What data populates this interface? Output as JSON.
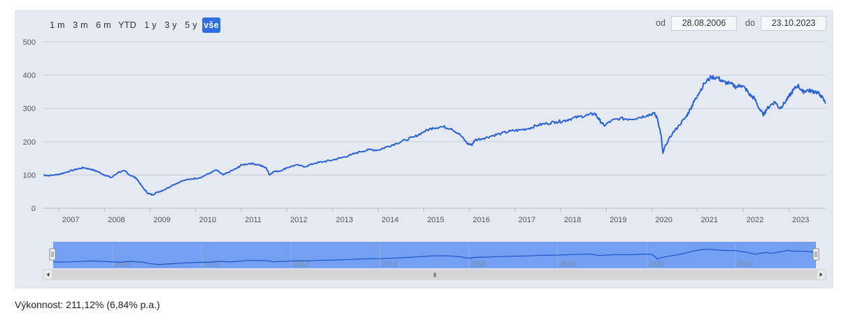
{
  "range_selector": {
    "buttons": [
      "1 m",
      "3 m",
      "6 m",
      "YTD",
      "1 y",
      "3 y",
      "5 y",
      "vše"
    ],
    "active": "vše"
  },
  "date_range": {
    "from_label": "od",
    "from_value": "28.08.2006",
    "to_label": "do",
    "to_value": "23.10.2023"
  },
  "performance_text": "Výkonnost: 211,12% (6,84% p.a.)",
  "colors": {
    "line": "#2a62d6",
    "panel_background": "#e5e9f1",
    "navigator_selection": "#6f9bef",
    "active_button": "#2f6fe0"
  },
  "chart_data": {
    "type": "line",
    "title": "",
    "xlabel": "",
    "ylabel": "",
    "ylim": [
      0,
      500
    ],
    "y_ticks": [
      0,
      100,
      200,
      300,
      400,
      500
    ],
    "xlim": [
      2006.66,
      2023.81
    ],
    "x_ticks": [
      2007,
      2008,
      2009,
      2010,
      2011,
      2012,
      2013,
      2014,
      2015,
      2016,
      2017,
      2018,
      2019,
      2020,
      2021,
      2022,
      2023
    ],
    "grid": true,
    "legend": "none",
    "series": [
      {
        "values_x": [
          2006.66,
          2006.8,
          2007.0,
          2007.2,
          2007.4,
          2007.55,
          2007.7,
          2007.85,
          2008.0,
          2008.15,
          2008.3,
          2008.45,
          2008.55,
          2008.7,
          2008.85,
          2008.95,
          2009.05,
          2009.15,
          2009.3,
          2009.5,
          2009.7,
          2009.9,
          2010.1,
          2010.3,
          2010.45,
          2010.6,
          2010.75,
          2010.9,
          2011.0,
          2011.2,
          2011.4,
          2011.55,
          2011.62,
          2011.7,
          2011.85,
          2012.0,
          2012.2,
          2012.4,
          2012.6,
          2012.8,
          2013.0,
          2013.2,
          2013.4,
          2013.6,
          2013.8,
          2014.0,
          2014.2,
          2014.4,
          2014.6,
          2014.8,
          2015.0,
          2015.2,
          2015.4,
          2015.6,
          2015.8,
          2015.95,
          2016.05,
          2016.12,
          2016.3,
          2016.5,
          2016.7,
          2016.9,
          2017.1,
          2017.3,
          2017.5,
          2017.7,
          2017.9,
          2018.05,
          2018.2,
          2018.4,
          2018.6,
          2018.75,
          2018.85,
          2018.95,
          2019.1,
          2019.3,
          2019.5,
          2019.7,
          2019.9,
          2020.05,
          2020.12,
          2020.2,
          2020.24,
          2020.3,
          2020.45,
          2020.6,
          2020.75,
          2020.85,
          2020.92,
          2021.0,
          2021.15,
          2021.3,
          2021.45,
          2021.55,
          2021.7,
          2021.85,
          2021.95,
          2022.05,
          2022.15,
          2022.25,
          2022.35,
          2022.45,
          2022.5,
          2022.6,
          2022.7,
          2022.8,
          2022.9,
          2023.0,
          2023.1,
          2023.2,
          2023.3,
          2023.4,
          2023.5,
          2023.6,
          2023.7,
          2023.81
        ],
        "values_y": [
          100,
          98,
          102,
          110,
          118,
          122,
          117,
          110,
          100,
          92,
          108,
          112,
          100,
          90,
          60,
          45,
          40,
          48,
          55,
          70,
          82,
          88,
          92,
          105,
          115,
          100,
          110,
          120,
          130,
          135,
          130,
          120,
          100,
          110,
          112,
          122,
          130,
          125,
          135,
          140,
          145,
          152,
          160,
          170,
          176,
          175,
          185,
          195,
          205,
          215,
          230,
          242,
          245,
          240,
          220,
          195,
          190,
          205,
          210,
          218,
          225,
          232,
          235,
          240,
          250,
          255,
          260,
          262,
          268,
          275,
          280,
          285,
          265,
          248,
          262,
          270,
          268,
          272,
          280,
          285,
          270,
          220,
          165,
          190,
          225,
          250,
          275,
          300,
          320,
          340,
          375,
          395,
          392,
          380,
          375,
          365,
          370,
          360,
          340,
          330,
          300,
          280,
          295,
          310,
          320,
          300,
          315,
          335,
          355,
          370,
          350,
          355,
          352,
          350,
          340,
          315
        ],
        "name": ""
      }
    ]
  },
  "navigator": {
    "x_ticks": [
      2008,
      2010,
      2012,
      2014,
      2016,
      2018,
      2020,
      2022
    ],
    "scrollbar_grip": "III"
  }
}
